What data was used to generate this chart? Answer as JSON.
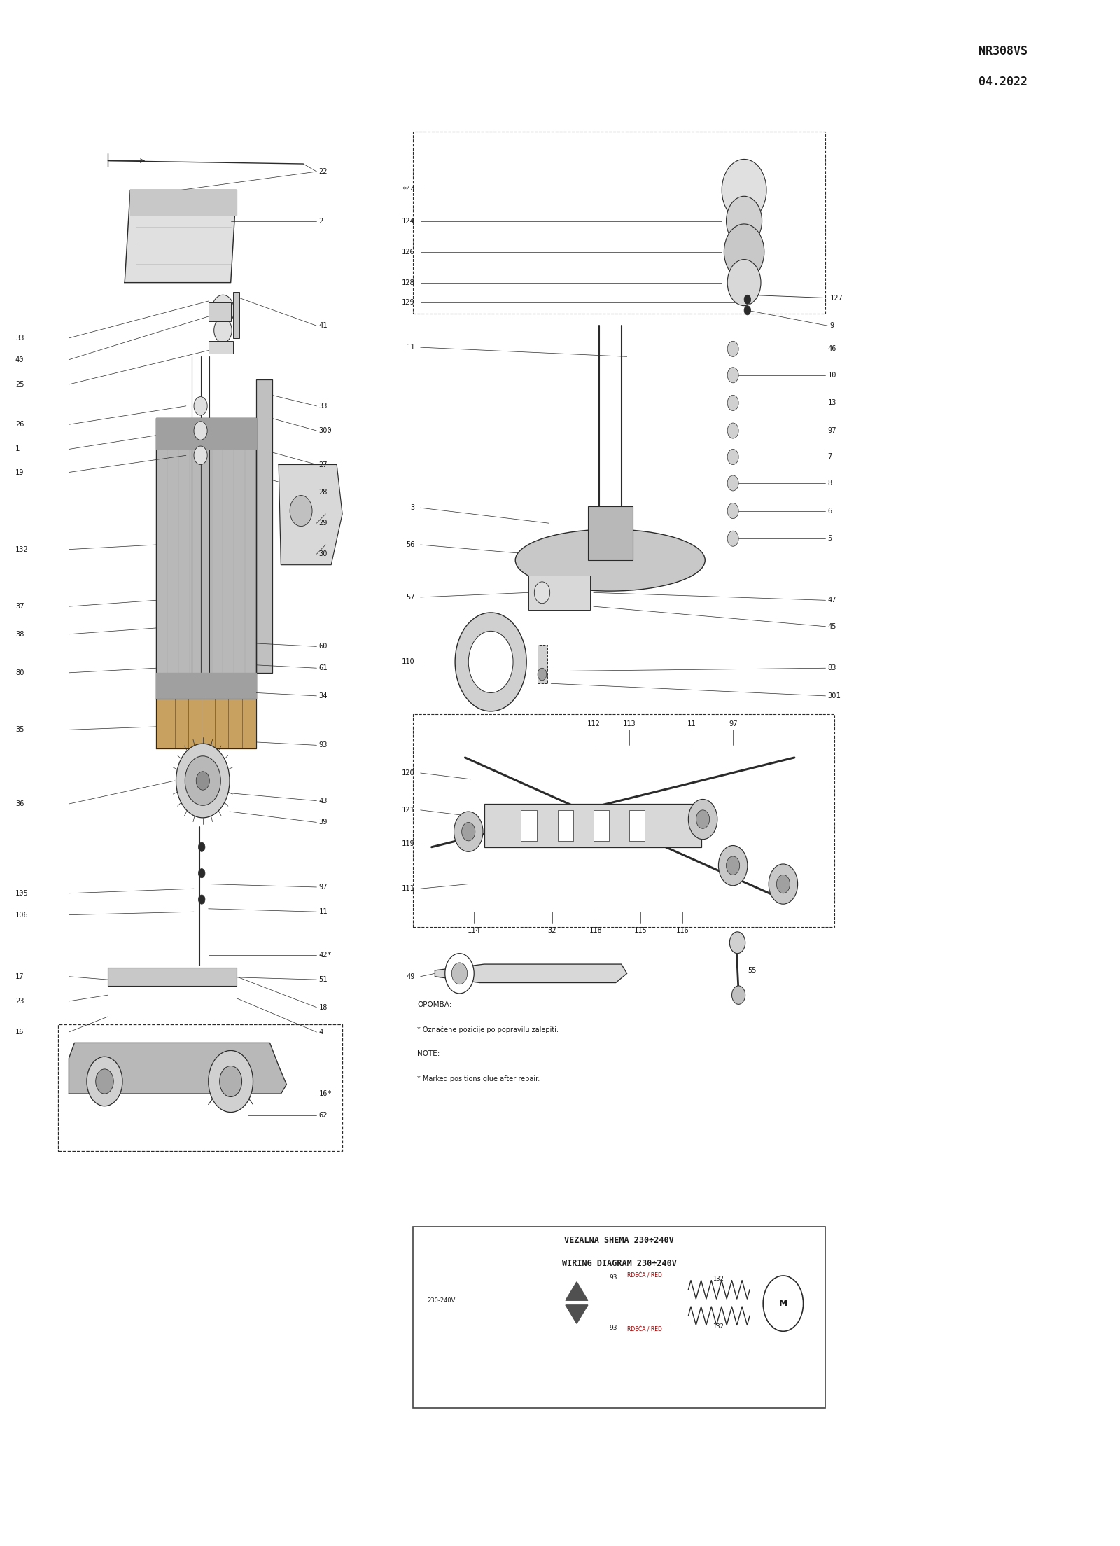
{
  "bg_color": "#ffffff",
  "line_color": "#2a2a2a",
  "text_color": "#1a1a1a",
  "fig_width": 16.0,
  "fig_height": 22.08,
  "dpi": 100,
  "model": "NR308VS",
  "date": "04.2022",
  "note_text": "OPOMBA:\n* Označene pozicije po popravilu zalepiti.\nNOTE:\n* Marked positions glue after repair.",
  "wiring_title1": "VEZALNA SHEMA 230÷240V",
  "wiring_title2": "WIRING DIAGRAM 230÷240V"
}
